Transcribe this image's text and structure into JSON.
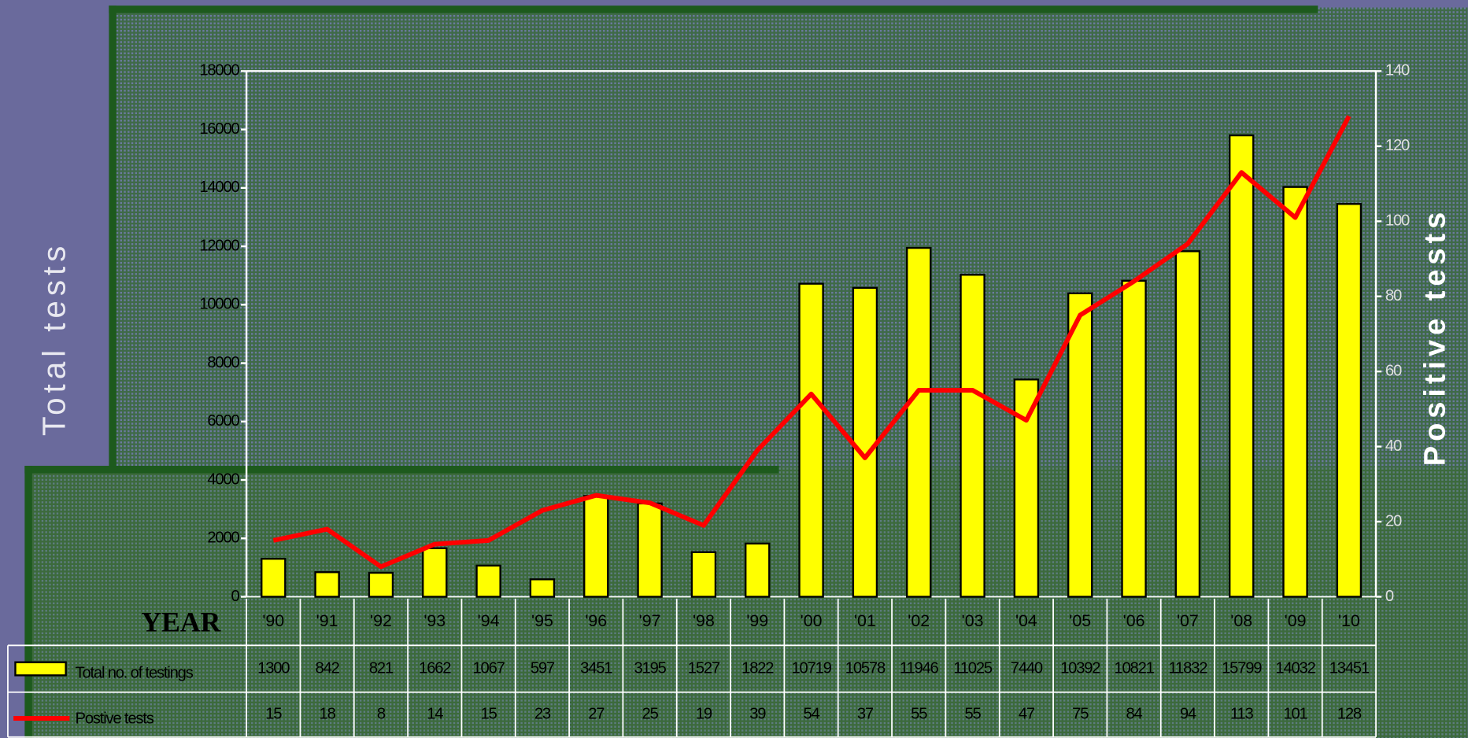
{
  "chart_data": {
    "type": "bar",
    "y_label": "Total tests",
    "y2_label": "Positive tests",
    "x_label": "YEAR",
    "categories": [
      "'90",
      "'91",
      "'92",
      "'93",
      "'94",
      "'95",
      "'96",
      "'97",
      "'98",
      "'99",
      "'00",
      "'01",
      "'02",
      "'03",
      "'04",
      "'05",
      "'06",
      "'07",
      "'08",
      "'09",
      "'10"
    ],
    "series": [
      {
        "name": "Total no. of testings",
        "color": "#ffff00",
        "values": [
          1300,
          842,
          821,
          1662,
          1067,
          597,
          3451,
          3195,
          1527,
          1822,
          10719,
          10578,
          11946,
          11025,
          7440,
          10392,
          10821,
          11832,
          15799,
          14032,
          13451
        ]
      },
      {
        "name": "Postive tests",
        "color": "#ff0000",
        "type": "line",
        "axis": "y2",
        "values": [
          15,
          18,
          8,
          14,
          15,
          23,
          27,
          25,
          19,
          39,
          54,
          37,
          55,
          55,
          47,
          75,
          84,
          94,
          113,
          101,
          128
        ]
      }
    ],
    "ylim": [
      0,
      18000
    ],
    "yticks": [
      0,
      2000,
      4000,
      6000,
      8000,
      10000,
      12000,
      14000,
      16000,
      18000
    ],
    "y2lim": [
      0,
      140
    ],
    "y2ticks": [
      0,
      20,
      40,
      60,
      80,
      100,
      120,
      140
    ]
  }
}
